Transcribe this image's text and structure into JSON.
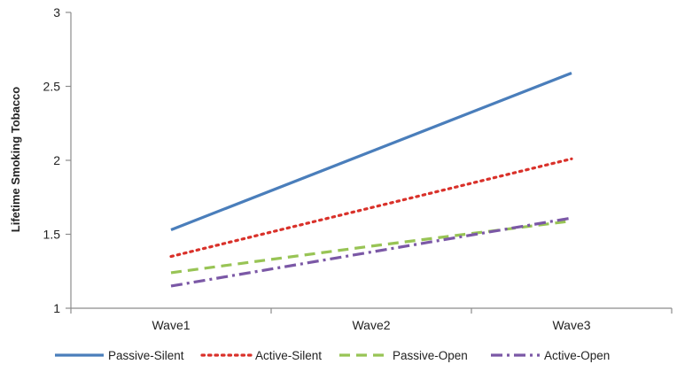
{
  "chart_data": {
    "type": "line",
    "title": "",
    "xlabel": "",
    "ylabel": "Lifetime Smoking Tobacco",
    "categories": [
      "Wave1",
      "Wave2",
      "Wave3"
    ],
    "ylim": [
      1,
      3
    ],
    "yticks": [
      "1",
      "1.5",
      "2",
      "2.5",
      "3"
    ],
    "grid": false,
    "legend_position": "bottom",
    "series": [
      {
        "name": "Passive-Silent",
        "values": [
          1.53,
          2.06,
          2.59
        ],
        "color": "#4a7ebb",
        "dash": "solid"
      },
      {
        "name": "Active-Silent",
        "values": [
          1.35,
          1.68,
          2.01
        ],
        "color": "#d9312a",
        "dash": "dotted"
      },
      {
        "name": "Passive-Open",
        "values": [
          1.24,
          1.42,
          1.59
        ],
        "color": "#98c455",
        "dash": "dashed"
      },
      {
        "name": "Active-Open",
        "values": [
          1.15,
          1.38,
          1.61
        ],
        "color": "#7b58a6",
        "dash": "dash-dot"
      }
    ]
  }
}
